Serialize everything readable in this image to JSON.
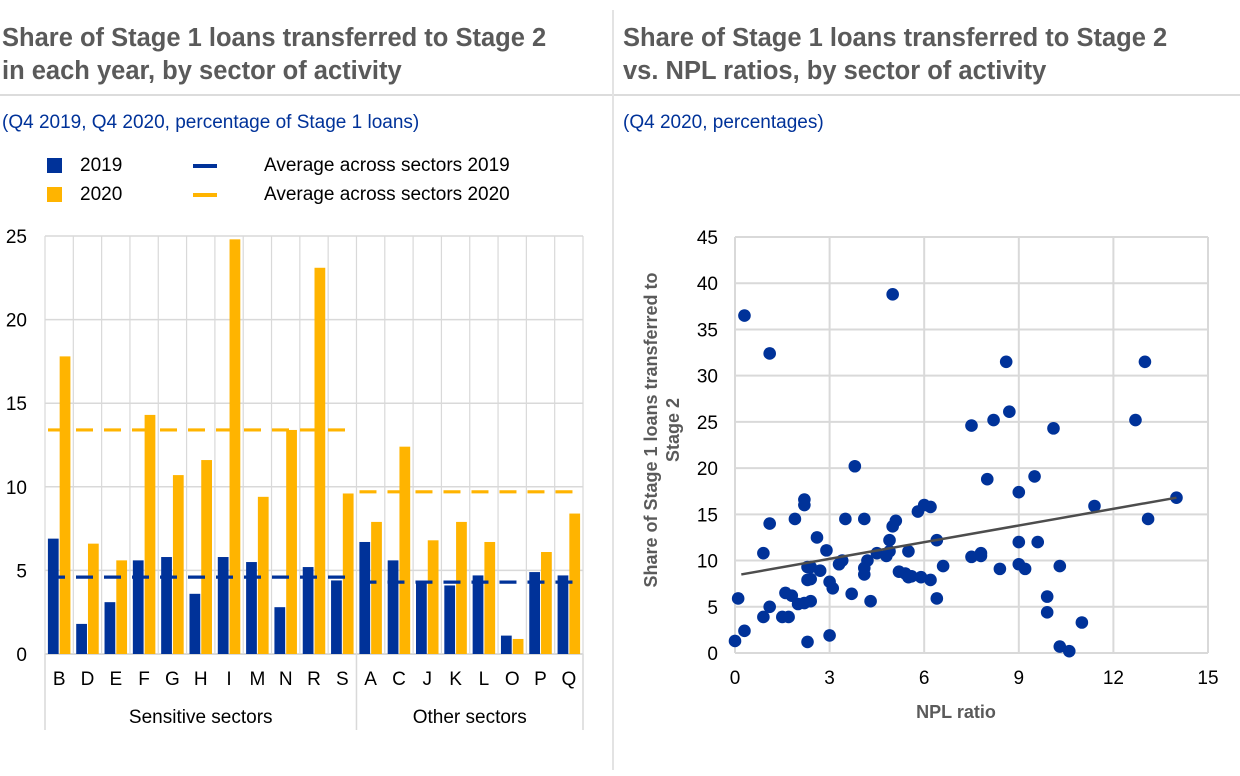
{
  "left_panel": {
    "title_line1": "Share of Stage 1 loans transferred to Stage 2",
    "title_line2": "in each year, by sector of activity",
    "subtitle": "(Q4 2019, Q4 2020, percentage of Stage 1 loans)",
    "legend": {
      "items": [
        {
          "label": "2019",
          "type": "bar",
          "color": "#003299"
        },
        {
          "label": "2020",
          "type": "bar",
          "color": "#FFB400"
        },
        {
          "label": "Average across sectors 2019",
          "type": "line",
          "color": "#003299"
        },
        {
          "label": "Average across sectors 2020",
          "type": "line",
          "color": "#FFB400"
        }
      ]
    }
  },
  "right_panel": {
    "title_line1": "Share of Stage 1 loans transferred to Stage 2",
    "title_line2": "vs. NPL ratios, by sector of activity",
    "subtitle": "(Q4 2020, percentages)"
  },
  "colors": {
    "series_2019": "#003299",
    "series_2020": "#FFB400",
    "scatter_point": "#003299",
    "trend_line": "#4d4d4d",
    "grid": "#d9d9d9",
    "title": "#5a5a5a",
    "subtitle": "#003299"
  },
  "chart_data": [
    {
      "type": "bar",
      "title": "Share of Stage 1 loans transferred to Stage 2 in each year, by sector of activity",
      "subtitle": "(Q4 2019, Q4 2020, percentage of Stage 1 loans)",
      "xlabel": "",
      "ylabel": "",
      "ylim": [
        0,
        25
      ],
      "yticks": [
        0,
        5,
        10,
        15,
        20,
        25
      ],
      "grid": true,
      "legend_position": "top",
      "categories": [
        "B",
        "D",
        "E",
        "F",
        "G",
        "H",
        "I",
        "M",
        "N",
        "R",
        "S",
        "A",
        "C",
        "J",
        "K",
        "L",
        "O",
        "P",
        "Q"
      ],
      "groups": [
        {
          "label": "Sensitive sectors",
          "categories": [
            "B",
            "D",
            "E",
            "F",
            "G",
            "H",
            "I",
            "M",
            "N",
            "R",
            "S"
          ]
        },
        {
          "label": "Other sectors",
          "categories": [
            "A",
            "C",
            "J",
            "K",
            "L",
            "O",
            "P",
            "Q"
          ]
        }
      ],
      "series": [
        {
          "name": "2019",
          "values": [
            6.9,
            1.8,
            3.1,
            5.6,
            5.8,
            3.6,
            5.8,
            5.5,
            2.8,
            5.2,
            4.4,
            6.7,
            5.6,
            4.3,
            4.1,
            4.7,
            1.1,
            4.9,
            4.7
          ]
        },
        {
          "name": "2020",
          "values": [
            17.8,
            6.6,
            5.6,
            14.3,
            10.7,
            11.6,
            24.8,
            9.4,
            13.4,
            23.1,
            9.6,
            7.9,
            12.4,
            6.8,
            7.9,
            6.7,
            0.9,
            6.1,
            8.4
          ]
        }
      ],
      "reference_lines": [
        {
          "name": "Average across sectors 2019",
          "group": "Sensitive sectors",
          "value": 4.6
        },
        {
          "name": "Average across sectors 2019",
          "group": "Other sectors",
          "value": 4.3
        },
        {
          "name": "Average across sectors 2020",
          "group": "Sensitive sectors",
          "value": 13.4
        },
        {
          "name": "Average across sectors 2020",
          "group": "Other sectors",
          "value": 9.7
        }
      ]
    },
    {
      "type": "scatter",
      "title": "Share of Stage 1 loans transferred to Stage 2 vs. NPL ratios, by sector of activity",
      "subtitle": "(Q4 2020, percentages)",
      "xlabel": "NPL ratio",
      "ylabel": "Share of Stage 1 loans transferred to Stage 2",
      "xlim": [
        0,
        15
      ],
      "ylim": [
        0,
        45
      ],
      "xticks": [
        0,
        3,
        6,
        9,
        12,
        15
      ],
      "yticks": [
        0,
        5,
        10,
        15,
        20,
        25,
        30,
        35,
        40,
        45
      ],
      "grid": true,
      "points": [
        [
          0.3,
          36.5
        ],
        [
          1.1,
          32.4
        ],
        [
          5.0,
          38.8
        ],
        [
          0.0,
          1.3
        ],
        [
          0.3,
          2.4
        ],
        [
          0.1,
          5.9
        ],
        [
          0.9,
          3.9
        ],
        [
          1.1,
          5.0
        ],
        [
          0.9,
          10.8
        ],
        [
          1.1,
          14.0
        ],
        [
          1.5,
          3.9
        ],
        [
          1.7,
          3.9
        ],
        [
          1.6,
          6.5
        ],
        [
          1.8,
          6.2
        ],
        [
          2.0,
          5.3
        ],
        [
          2.2,
          5.4
        ],
        [
          2.4,
          5.6
        ],
        [
          2.3,
          7.9
        ],
        [
          2.4,
          8.0
        ],
        [
          2.3,
          9.3
        ],
        [
          2.4,
          9.3
        ],
        [
          2.6,
          12.5
        ],
        [
          2.7,
          8.9
        ],
        [
          2.2,
          16.0
        ],
        [
          2.2,
          16.6
        ],
        [
          1.9,
          14.5
        ],
        [
          2.3,
          1.2
        ],
        [
          3.0,
          1.9
        ],
        [
          2.9,
          11.1
        ],
        [
          3.0,
          7.7
        ],
        [
          3.1,
          7.0
        ],
        [
          3.3,
          9.6
        ],
        [
          3.4,
          10.0
        ],
        [
          3.5,
          14.5
        ],
        [
          3.8,
          20.2
        ],
        [
          3.7,
          6.4
        ],
        [
          4.1,
          8.5
        ],
        [
          4.1,
          9.2
        ],
        [
          4.2,
          10.0
        ],
        [
          4.1,
          14.5
        ],
        [
          4.3,
          5.6
        ],
        [
          4.5,
          10.8
        ],
        [
          4.8,
          10.5
        ],
        [
          4.9,
          12.2
        ],
        [
          5.0,
          13.7
        ],
        [
          5.1,
          14.3
        ],
        [
          4.9,
          11.0
        ],
        [
          5.2,
          8.8
        ],
        [
          5.4,
          8.6
        ],
        [
          5.5,
          8.2
        ],
        [
          5.6,
          8.3
        ],
        [
          5.5,
          11.0
        ],
        [
          5.8,
          15.3
        ],
        [
          5.9,
          8.2
        ],
        [
          6.0,
          16.0
        ],
        [
          6.2,
          15.8
        ],
        [
          6.2,
          7.9
        ],
        [
          6.4,
          12.2
        ],
        [
          6.4,
          5.9
        ],
        [
          6.6,
          9.4
        ],
        [
          7.5,
          10.4
        ],
        [
          7.5,
          24.6
        ],
        [
          7.8,
          10.5
        ],
        [
          7.8,
          10.8
        ],
        [
          8.0,
          18.8
        ],
        [
          8.2,
          25.2
        ],
        [
          8.4,
          9.1
        ],
        [
          8.6,
          31.5
        ],
        [
          8.7,
          26.1
        ],
        [
          9.0,
          9.6
        ],
        [
          9.0,
          12.0
        ],
        [
          9.0,
          17.4
        ],
        [
          9.2,
          9.1
        ],
        [
          9.5,
          19.1
        ],
        [
          9.6,
          12.0
        ],
        [
          9.9,
          6.1
        ],
        [
          9.9,
          4.4
        ],
        [
          10.1,
          24.3
        ],
        [
          10.3,
          9.4
        ],
        [
          10.3,
          0.7
        ],
        [
          10.6,
          0.2
        ],
        [
          11.0,
          3.3
        ],
        [
          11.4,
          15.9
        ],
        [
          12.7,
          25.2
        ],
        [
          13.0,
          31.5
        ],
        [
          13.1,
          14.5
        ],
        [
          14.0,
          16.8
        ]
      ],
      "trendline": {
        "x": [
          0.2,
          14.0
        ],
        "y": [
          8.5,
          16.8
        ]
      }
    }
  ]
}
